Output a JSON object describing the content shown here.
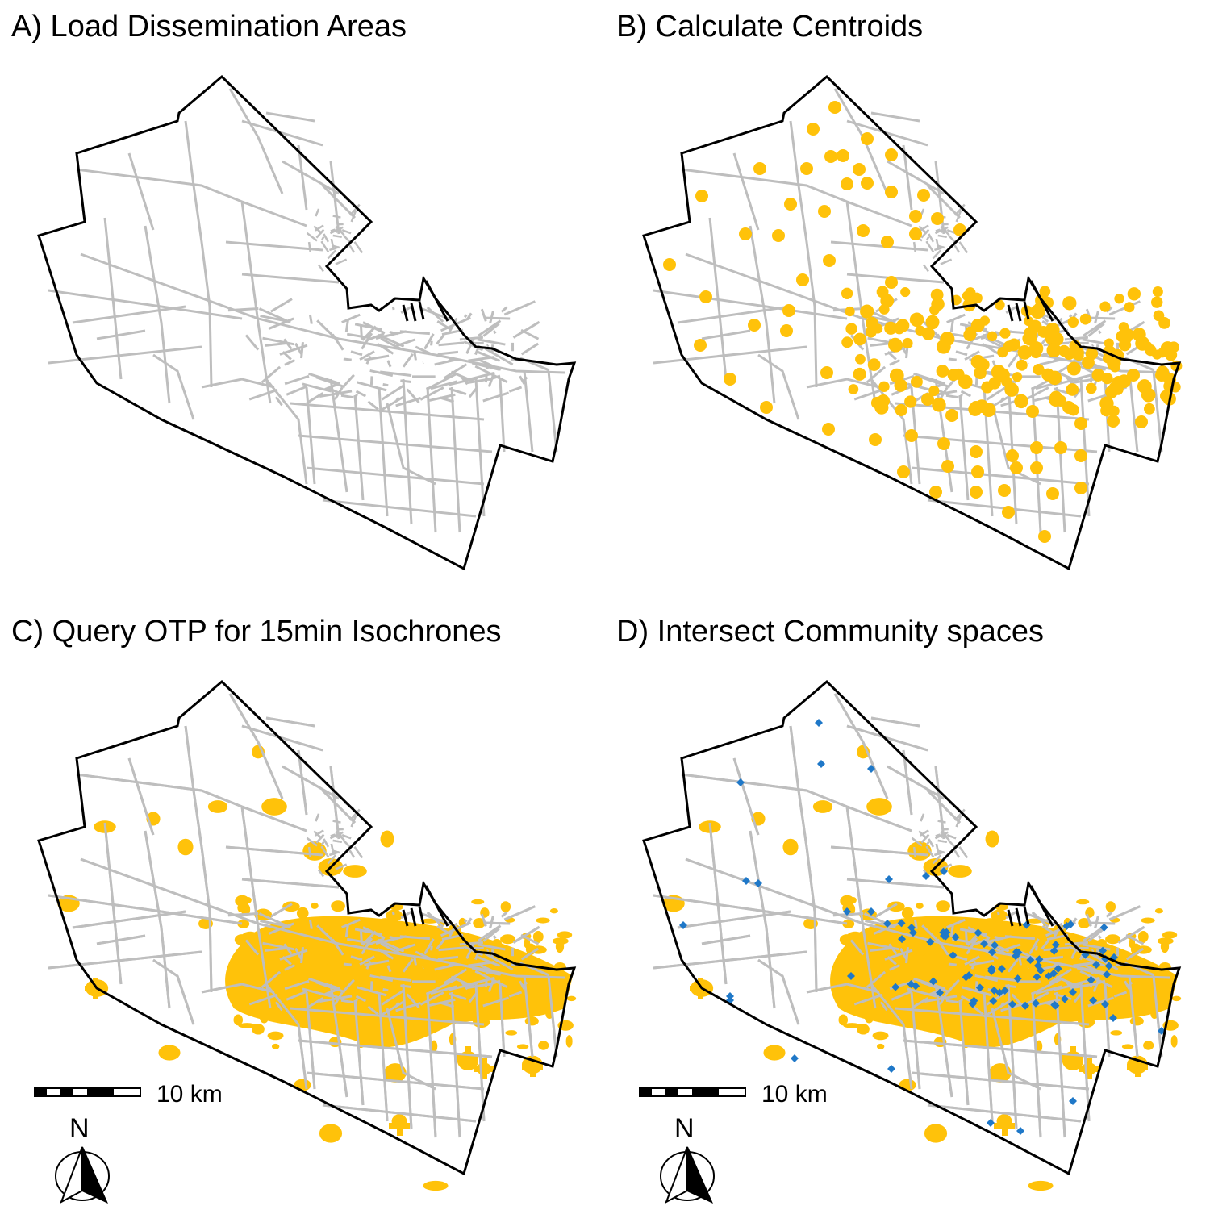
{
  "panels": [
    {
      "title": "A) Load Dissemination Areas",
      "layers": [
        "boundaries"
      ]
    },
    {
      "title": "B) Calculate Centroids",
      "layers": [
        "boundaries",
        "centroids"
      ]
    },
    {
      "title": "C) Query OTP for 15min Isochrones",
      "layers": [
        "boundaries",
        "isochrones"
      ]
    },
    {
      "title": "D) Intersect Community spaces",
      "layers": [
        "boundaries",
        "isochrones",
        "community"
      ]
    }
  ],
  "scale_bar": {
    "label": "10 km"
  },
  "north_arrow": {
    "label": "N"
  },
  "colors": {
    "outline": "#000000",
    "boundaries": "#bebebe",
    "centroids": "#ffc20a",
    "isochrones": "#ffc20a",
    "community_spaces": "#1f78c8"
  },
  "symbols": {
    "centroid": "filled-circle",
    "community_space": "diamond"
  }
}
